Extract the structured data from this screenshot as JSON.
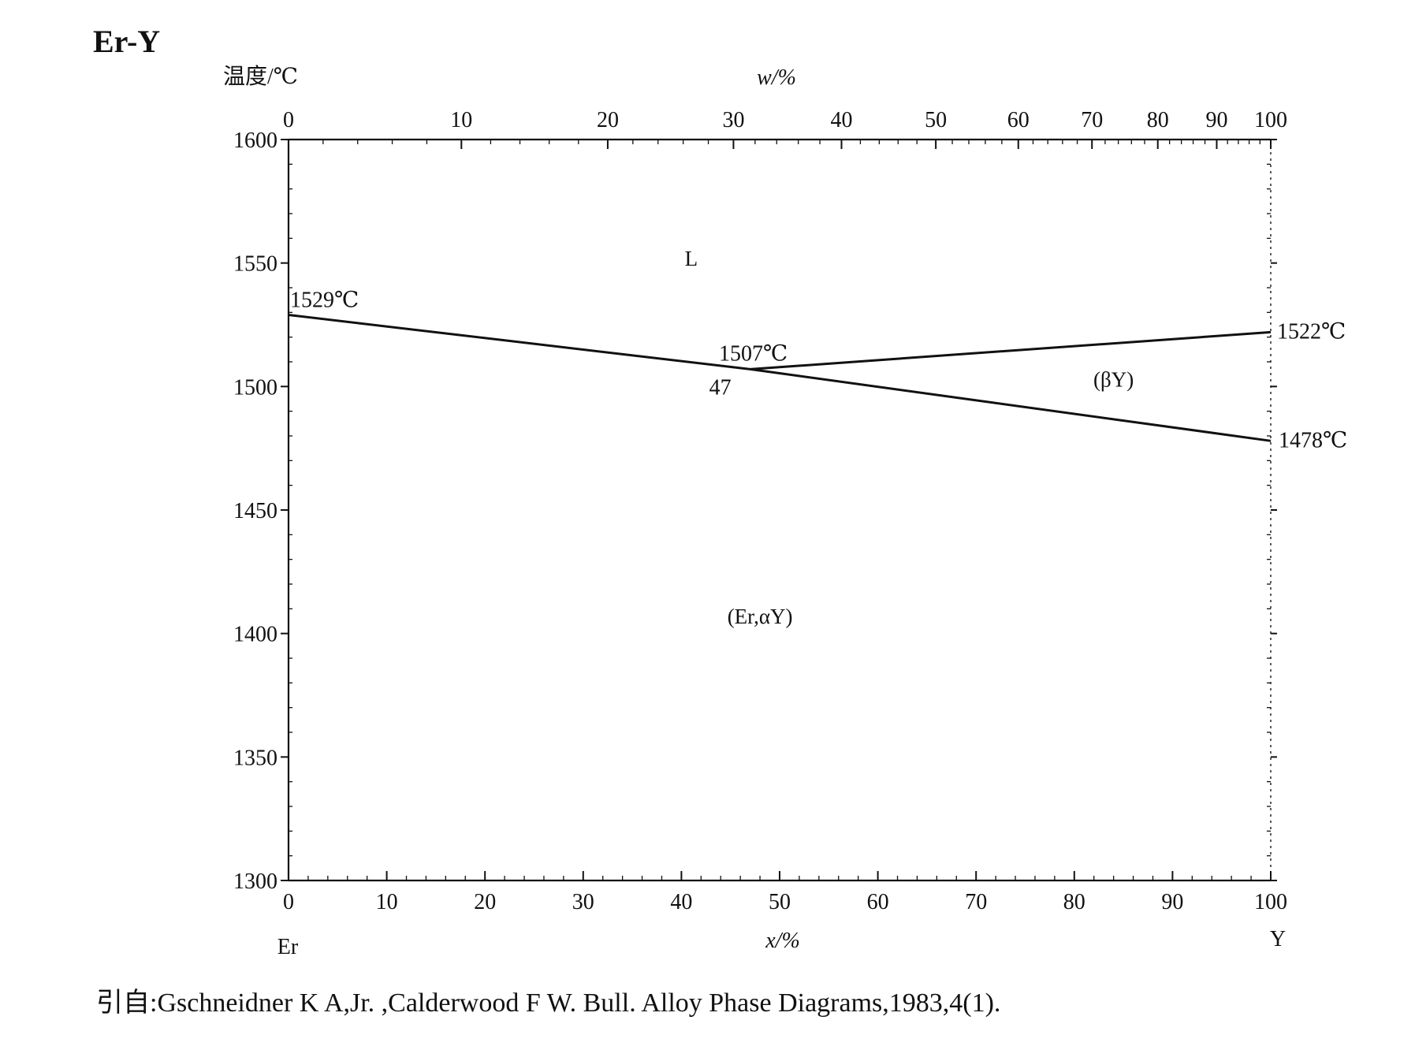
{
  "chart_data": {
    "type": "line",
    "title": "Er-Y",
    "ylabel": "温度/℃",
    "xlabel": "x/%",
    "x2label": "w/%",
    "xlim": [
      0,
      100
    ],
    "ylim": [
      1300,
      1600
    ],
    "x_ticks": [
      "0",
      "10",
      "20",
      "30",
      "40",
      "50",
      "60",
      "70",
      "80",
      "90",
      "100"
    ],
    "y_ticks": [
      "1600",
      "1550",
      "1500",
      "1450",
      "1400",
      "1350",
      "1300"
    ],
    "top_axis": {
      "ticks": [
        {
          "label": "0",
          "x": 0
        },
        {
          "label": "10",
          "x": 17.6
        },
        {
          "label": "20",
          "x": 32.5
        },
        {
          "label": "30",
          "x": 45.3
        },
        {
          "label": "40",
          "x": 56.3
        },
        {
          "label": "50",
          "x": 65.9
        },
        {
          "label": "60",
          "x": 74.3
        },
        {
          "label": "70",
          "x": 81.8
        },
        {
          "label": "80",
          "x": 88.5
        },
        {
          "label": "90",
          "x": 94.5
        },
        {
          "label": "100",
          "x": 100
        }
      ]
    },
    "components": {
      "left": "Er",
      "right": "Y"
    },
    "series": [
      {
        "values": [
          [
            0,
            1529
          ],
          [
            47,
            1507
          ]
        ]
      },
      {
        "values": [
          [
            47,
            1507
          ],
          [
            100,
            1522
          ]
        ]
      },
      {
        "values": [
          [
            47,
            1507
          ],
          [
            100,
            1478
          ]
        ]
      }
    ],
    "phase_labels": [
      {
        "text": "L",
        "x": 41,
        "y": 1549
      },
      {
        "text": "(βY)",
        "x": 84,
        "y": 1500
      },
      {
        "text": "(Er,αY)",
        "x": 48,
        "y": 1404
      }
    ],
    "annotations": [
      {
        "text": "1529℃",
        "x": 0,
        "y": 1529
      },
      {
        "text": "1507℃",
        "x": 47,
        "y": 1507
      },
      {
        "text": "47",
        "x": 47,
        "y": 1507
      },
      {
        "text": "1522℃",
        "x": 100,
        "y": 1522
      },
      {
        "text": "1478℃",
        "x": 100,
        "y": 1478
      }
    ],
    "grid": false
  },
  "citation": "引自:Gschneidner K A,Jr. ,Calderwood F W. Bull.  Alloy Phase Diagrams,1983,4(1)."
}
